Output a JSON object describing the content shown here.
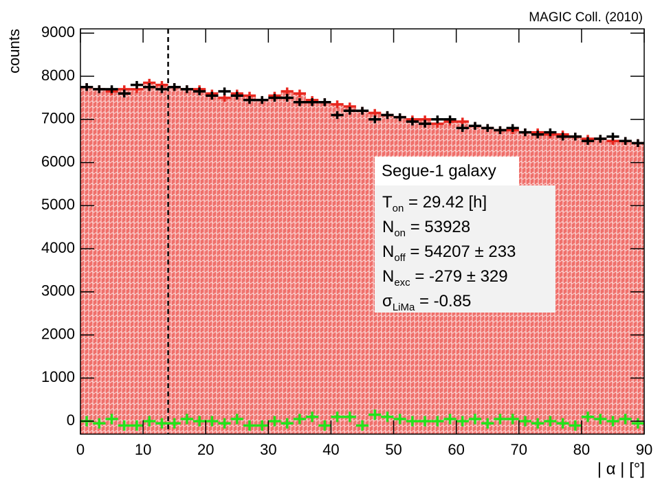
{
  "chart_data": {
    "type": "histogram",
    "corner_label": "MAGIC Coll. (2010)",
    "xlabel": "| α | [°]",
    "ylabel": "counts",
    "bins": [
      0,
      2,
      4,
      6,
      8,
      10,
      12,
      14,
      16,
      18,
      20,
      22,
      24,
      26,
      28,
      30,
      32,
      34,
      36,
      38,
      40,
      42,
      44,
      46,
      48,
      50,
      52,
      54,
      56,
      58,
      60,
      62,
      64,
      66,
      68,
      70,
      72,
      74,
      76,
      78,
      80,
      82,
      84,
      86,
      88,
      90
    ],
    "xlim": [
      0,
      90
    ],
    "xticks": [
      0,
      10,
      20,
      30,
      40,
      50,
      60,
      70,
      80,
      90
    ],
    "ylim": [
      -300,
      9100
    ],
    "yticks": [
      0,
      1000,
      2000,
      3000,
      4000,
      5000,
      6000,
      7000,
      8000,
      9000
    ],
    "cut": 14,
    "series": [
      {
        "color": "#e8261e",
        "fill": true,
        "error": 90,
        "values": [
          7750,
          7700,
          7650,
          7700,
          7700,
          7850,
          7800,
          7750,
          7700,
          7700,
          7600,
          7500,
          7600,
          7550,
          7450,
          7550,
          7650,
          7600,
          7450,
          7400,
          7350,
          7300,
          7200,
          7150,
          7100,
          7050,
          7000,
          7000,
          6900,
          6950,
          6950,
          6850,
          6800,
          6750,
          6750,
          6700,
          6700,
          6650,
          6650,
          6600,
          6550,
          6550,
          6500,
          6500,
          6450
        ]
      },
      {
        "color": "#000000",
        "fill": false,
        "error": 90,
        "values": [
          7750,
          7700,
          7700,
          7600,
          7800,
          7750,
          7700,
          7750,
          7700,
          7650,
          7550,
          7650,
          7550,
          7450,
          7450,
          7500,
          7500,
          7400,
          7400,
          7400,
          7100,
          7200,
          7200,
          7000,
          7100,
          7050,
          6950,
          6900,
          7000,
          7000,
          6800,
          6850,
          6800,
          6750,
          6800,
          6700,
          6650,
          6700,
          6600,
          6600,
          6500,
          6550,
          6600,
          6500,
          6450
        ]
      },
      {
        "color": "#22e41c",
        "fill": false,
        "error": 120,
        "values": [
          0,
          -50,
          50,
          -100,
          -100,
          0,
          -50,
          -50,
          50,
          0,
          0,
          -50,
          50,
          -100,
          -100,
          0,
          -50,
          50,
          100,
          -100,
          100,
          100,
          -100,
          150,
          100,
          50,
          0,
          0,
          0,
          50,
          0,
          50,
          -50,
          50,
          50,
          0,
          -50,
          0,
          -50,
          -100,
          100,
          50,
          0,
          50,
          -50
        ]
      }
    ],
    "source_label": "Segue-1 galaxy",
    "stats": [
      {
        "symbol": "T",
        "sub": "on",
        "text": " = 29.42 [h]"
      },
      {
        "symbol": "N",
        "sub": "on",
        "text": " = 53928"
      },
      {
        "symbol": "N",
        "sub": "off",
        "text": " = 54207 ± 233"
      },
      {
        "symbol": "N",
        "sub": "exc",
        "text": " = -279 ± 329"
      },
      {
        "symbol": "σ",
        "sub": "LiMa",
        "text": " = -0.85"
      }
    ]
  }
}
